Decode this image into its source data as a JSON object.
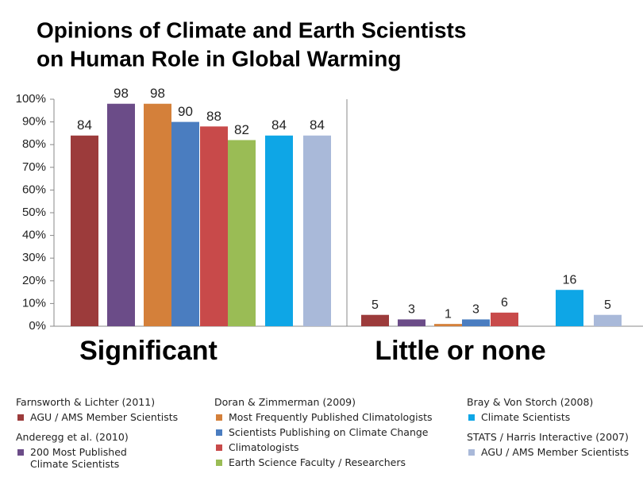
{
  "chart_data": {
    "type": "bar",
    "title": [
      "Opinions of Climate and Earth Scientists",
      "on Human Role in Global Warming"
    ],
    "categories": [
      "Significant",
      "Little or none"
    ],
    "ylim": [
      0,
      100
    ],
    "yticks": [
      {
        "value": 0,
        "label": "0%"
      },
      {
        "value": 10,
        "label": "10%"
      },
      {
        "value": 20,
        "label": "20%"
      },
      {
        "value": 30,
        "label": "30%"
      },
      {
        "value": 40,
        "label": "40%"
      },
      {
        "value": 50,
        "label": "50%"
      },
      {
        "value": 60,
        "label": "60%"
      },
      {
        "value": 70,
        "label": "70%"
      },
      {
        "value": 80,
        "label": "80%"
      },
      {
        "value": 90,
        "label": "90%"
      },
      {
        "value": 100,
        "label": "100%"
      }
    ],
    "series_groups": [
      {
        "title": "Farnsworth & Lichter (2011)",
        "series": [
          {
            "name": "AGU / AMS Member Scientists",
            "color": "#9c3b3b",
            "values": [
              84,
              5
            ]
          }
        ]
      },
      {
        "title": "Anderegg et al. (2010)",
        "series": [
          {
            "name": "200 Most Published Climate Scientists",
            "color": "#6b4c88",
            "values": [
              98,
              3
            ]
          }
        ]
      },
      {
        "title": "Doran & Zimmerman (2009)",
        "series": [
          {
            "name": "Most Frequently Published Climatologists",
            "color": "#d4803a",
            "values": [
              98,
              1
            ]
          },
          {
            "name": "Scientists Publishing on Climate Change",
            "color": "#4a7dc0",
            "values": [
              90,
              3
            ]
          },
          {
            "name": "Climatologists",
            "color": "#c84a4a",
            "values": [
              88,
              6
            ]
          },
          {
            "name": "Earth Science Faculty / Researchers",
            "color": "#9abc55",
            "values": [
              82,
              null
            ]
          }
        ]
      },
      {
        "title": "Bray & Von Storch (2008)",
        "series": [
          {
            "name": "Climate Scientists",
            "color": "#0ea6e6",
            "values": [
              84,
              16
            ]
          }
        ]
      },
      {
        "title": "STATS / Harris Interactive (2007)",
        "series": [
          {
            "name": "AGU / AMS Member Scientists",
            "color": "#a9b9d9",
            "values": [
              84,
              5
            ]
          }
        ]
      }
    ]
  }
}
